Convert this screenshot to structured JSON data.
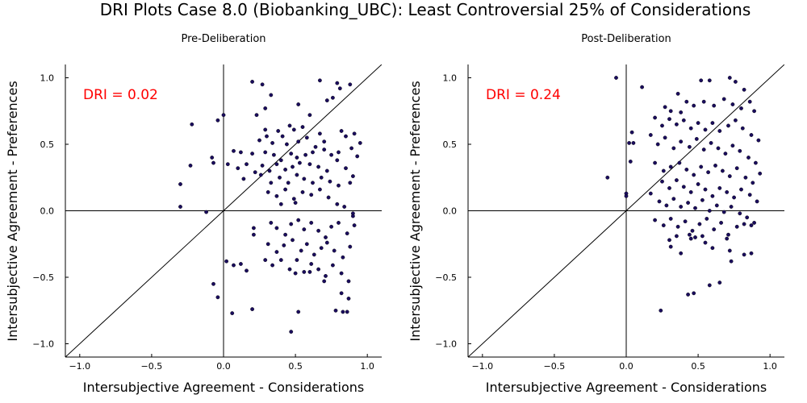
{
  "title": "DRI Plots Case 8.0 (Biobanking_UBC): Least Controversial 25% of Considerations",
  "colors": {
    "points": "#1a0c5e",
    "dri_text": "#ff0000",
    "axes": "#000000"
  },
  "chart_data": [
    {
      "type": "scatter",
      "title": "Pre-Deliberation",
      "xlabel": "Intersubjective Agreement - Considerations",
      "ylabel": "Intersubjective Agreement - Preferences",
      "xlim": [
        -1.1,
        1.1
      ],
      "ylim": [
        -1.1,
        1.1
      ],
      "xticks": [
        -1.0,
        -0.5,
        0.0,
        0.5,
        1.0
      ],
      "xtick_labels": [
        "−1.0",
        "−0.5",
        "0.0",
        "0.5",
        "1.0"
      ],
      "yticks": [
        -1.0,
        -0.5,
        0.0,
        0.5,
        1.0
      ],
      "ytick_labels": [
        "−1.0",
        "−0.5",
        "0.0",
        "0.5",
        "1.0"
      ],
      "annotation": "DRI = 0.02",
      "reference_lines": [
        "x=0",
        "y=0",
        "y=x"
      ],
      "grid": false,
      "points": [
        [
          0.2,
          0.97
        ],
        [
          0.27,
          0.95
        ],
        [
          0.67,
          0.98
        ],
        [
          0.79,
          0.96
        ],
        [
          0.88,
          0.95
        ],
        [
          0.81,
          0.92
        ],
        [
          0.76,
          0.85
        ],
        [
          0.72,
          0.83
        ],
        [
          0.52,
          0.8
        ],
        [
          0.33,
          0.87
        ],
        [
          0.29,
          0.77
        ],
        [
          0.23,
          0.72
        ],
        [
          0.0,
          0.72
        ],
        [
          -0.04,
          0.68
        ],
        [
          -0.22,
          0.65
        ],
        [
          0.6,
          0.72
        ],
        [
          0.55,
          0.63
        ],
        [
          0.49,
          0.61
        ],
        [
          0.46,
          0.64
        ],
        [
          0.38,
          0.6
        ],
        [
          0.29,
          0.61
        ],
        [
          0.3,
          0.56
        ],
        [
          0.25,
          0.53
        ],
        [
          0.34,
          0.51
        ],
        [
          0.41,
          0.56
        ],
        [
          0.44,
          0.5
        ],
        [
          0.52,
          0.52
        ],
        [
          0.58,
          0.55
        ],
        [
          0.64,
          0.48
        ],
        [
          0.7,
          0.52
        ],
        [
          0.67,
          0.58
        ],
        [
          0.82,
          0.6
        ],
        [
          0.85,
          0.56
        ],
        [
          0.91,
          0.58
        ],
        [
          0.95,
          0.51
        ],
        [
          0.89,
          0.47
        ],
        [
          0.93,
          0.41
        ],
        [
          0.8,
          0.44
        ],
        [
          0.75,
          0.42
        ],
        [
          0.7,
          0.46
        ],
        [
          0.62,
          0.44
        ],
        [
          0.57,
          0.42
        ],
        [
          0.51,
          0.4
        ],
        [
          0.47,
          0.43
        ],
        [
          0.4,
          0.38
        ],
        [
          0.35,
          0.42
        ],
        [
          0.29,
          0.44
        ],
        [
          0.2,
          0.43
        ],
        [
          0.12,
          0.44
        ],
        [
          0.07,
          0.45
        ],
        [
          0.03,
          0.35
        ],
        [
          -0.08,
          0.4
        ],
        [
          -0.07,
          0.36
        ],
        [
          -0.23,
          0.34
        ],
        [
          0.1,
          0.32
        ],
        [
          0.16,
          0.35
        ],
        [
          0.22,
          0.29
        ],
        [
          0.27,
          0.34
        ],
        [
          0.32,
          0.3
        ],
        [
          0.37,
          0.35
        ],
        [
          0.43,
          0.31
        ],
        [
          0.48,
          0.33
        ],
        [
          0.53,
          0.36
        ],
        [
          0.6,
          0.35
        ],
        [
          0.66,
          0.33
        ],
        [
          0.72,
          0.3
        ],
        [
          0.79,
          0.38
        ],
        [
          0.85,
          0.32
        ],
        [
          0.9,
          0.26
        ],
        [
          0.14,
          0.24
        ],
        [
          0.26,
          0.27
        ],
        [
          0.33,
          0.21
        ],
        [
          0.39,
          0.25
        ],
        [
          0.45,
          0.21
        ],
        [
          0.51,
          0.27
        ],
        [
          0.56,
          0.24
        ],
        [
          0.62,
          0.21
        ],
        [
          0.68,
          0.25
        ],
        [
          0.74,
          0.22
        ],
        [
          0.8,
          0.19
        ],
        [
          0.88,
          0.21
        ],
        [
          0.31,
          0.14
        ],
        [
          0.37,
          0.11
        ],
        [
          0.43,
          0.16
        ],
        [
          0.49,
          0.09
        ],
        [
          0.55,
          0.14
        ],
        [
          0.61,
          0.12
        ],
        [
          0.67,
          0.16
        ],
        [
          0.73,
          0.1
        ],
        [
          0.79,
          0.05
        ],
        [
          0.84,
          0.03
        ],
        [
          0.9,
          -0.02
        ],
        [
          0.9,
          -0.04
        ],
        [
          0.5,
          0.06
        ],
        [
          0.4,
          0.05
        ],
        [
          -0.3,
          0.2
        ],
        [
          -0.3,
          0.03
        ],
        [
          -0.12,
          -0.01
        ],
        [
          0.21,
          -0.13
        ],
        [
          0.21,
          -0.18
        ],
        [
          0.33,
          -0.09
        ],
        [
          0.37,
          -0.13
        ],
        [
          0.43,
          -0.18
        ],
        [
          0.47,
          -0.1
        ],
        [
          0.52,
          -0.07
        ],
        [
          0.56,
          -0.14
        ],
        [
          0.61,
          -0.09
        ],
        [
          0.66,
          -0.15
        ],
        [
          0.71,
          -0.2
        ],
        [
          0.75,
          -0.12
        ],
        [
          0.8,
          -0.09
        ],
        [
          0.86,
          -0.17
        ],
        [
          0.91,
          -0.11
        ],
        [
          0.31,
          -0.25
        ],
        [
          0.37,
          -0.31
        ],
        [
          0.42,
          -0.26
        ],
        [
          0.48,
          -0.22
        ],
        [
          0.54,
          -0.3
        ],
        [
          0.58,
          -0.25
        ],
        [
          0.63,
          -0.33
        ],
        [
          0.68,
          -0.28
        ],
        [
          0.72,
          -0.24
        ],
        [
          0.77,
          -0.3
        ],
        [
          0.83,
          -0.35
        ],
        [
          0.88,
          -0.27
        ],
        [
          0.29,
          -0.37
        ],
        [
          0.34,
          -0.41
        ],
        [
          0.4,
          -0.37
        ],
        [
          0.46,
          -0.44
        ],
        [
          0.51,
          -0.37
        ],
        [
          0.56,
          -0.46
        ],
        [
          0.61,
          -0.4
        ],
        [
          0.66,
          -0.44
        ],
        [
          0.71,
          -0.49
        ],
        [
          0.76,
          -0.41
        ],
        [
          0.82,
          -0.47
        ],
        [
          0.87,
          -0.53
        ],
        [
          0.02,
          -0.38
        ],
        [
          0.07,
          -0.41
        ],
        [
          0.12,
          -0.4
        ],
        [
          0.16,
          -0.45
        ],
        [
          0.5,
          -0.47
        ],
        [
          0.6,
          -0.46
        ],
        [
          0.7,
          -0.53
        ],
        [
          0.82,
          -0.62
        ],
        [
          0.87,
          -0.66
        ],
        [
          0.78,
          -0.75
        ],
        [
          0.83,
          -0.76
        ],
        [
          0.86,
          -0.76
        ],
        [
          0.52,
          -0.76
        ],
        [
          0.47,
          -0.91
        ],
        [
          0.2,
          -0.74
        ],
        [
          0.06,
          -0.77
        ],
        [
          -0.07,
          -0.55
        ],
        [
          -0.04,
          -0.65
        ]
      ]
    },
    {
      "type": "scatter",
      "title": "Post-Deliberation",
      "xlabel": "Intersubjective Agreement - Considerations",
      "ylabel": "Intersubjective Agreement - Preferences",
      "xlim": [
        -1.1,
        1.1
      ],
      "ylim": [
        -1.1,
        1.1
      ],
      "xticks": [
        -1.0,
        -0.5,
        0.0,
        0.5,
        1.0
      ],
      "xtick_labels": [
        "−1.0",
        "−0.5",
        "0.0",
        "0.5",
        "1.0"
      ],
      "yticks": [
        -1.0,
        -0.5,
        0.0,
        0.5,
        1.0
      ],
      "ytick_labels": [
        "−1.0",
        "−0.5",
        "0.0",
        "0.5",
        "1.0"
      ],
      "annotation": "DRI = 0.24",
      "reference_lines": [
        "x=0",
        "y=0",
        "y=x"
      ],
      "grid": false,
      "points": [
        [
          -0.07,
          1.0
        ],
        [
          0.52,
          0.98
        ],
        [
          0.58,
          0.98
        ],
        [
          0.72,
          1.0
        ],
        [
          0.11,
          0.93
        ],
        [
          0.76,
          0.97
        ],
        [
          0.82,
          0.91
        ],
        [
          0.36,
          0.88
        ],
        [
          0.42,
          0.82
        ],
        [
          0.27,
          0.78
        ],
        [
          0.31,
          0.75
        ],
        [
          0.38,
          0.74
        ],
        [
          0.47,
          0.79
        ],
        [
          0.54,
          0.82
        ],
        [
          0.61,
          0.79
        ],
        [
          0.68,
          0.84
        ],
        [
          0.74,
          0.8
        ],
        [
          0.8,
          0.77
        ],
        [
          0.86,
          0.82
        ],
        [
          0.89,
          0.75
        ],
        [
          0.2,
          0.7
        ],
        [
          0.25,
          0.64
        ],
        [
          0.3,
          0.69
        ],
        [
          0.35,
          0.65
        ],
        [
          0.4,
          0.68
        ],
        [
          0.45,
          0.62
        ],
        [
          0.5,
          0.66
        ],
        [
          0.55,
          0.61
        ],
        [
          0.6,
          0.66
        ],
        [
          0.65,
          0.6
        ],
        [
          0.71,
          0.64
        ],
        [
          0.76,
          0.68
        ],
        [
          0.81,
          0.62
        ],
        [
          0.87,
          0.57
        ],
        [
          0.92,
          0.53
        ],
        [
          0.17,
          0.57
        ],
        [
          0.22,
          0.5
        ],
        [
          0.27,
          0.55
        ],
        [
          0.33,
          0.47
        ],
        [
          0.38,
          0.52
        ],
        [
          0.44,
          0.48
        ],
        [
          0.49,
          0.54
        ],
        [
          0.54,
          0.46
        ],
        [
          0.59,
          0.51
        ],
        [
          0.64,
          0.47
        ],
        [
          0.69,
          0.43
        ],
        [
          0.74,
          0.49
        ],
        [
          0.79,
          0.45
        ],
        [
          0.85,
          0.4
        ],
        [
          0.9,
          0.36
        ],
        [
          0.04,
          0.59
        ],
        [
          0.02,
          0.51
        ],
        [
          0.05,
          0.51
        ],
        [
          0.03,
          0.37
        ],
        [
          0.2,
          0.36
        ],
        [
          0.26,
          0.3
        ],
        [
          0.31,
          0.33
        ],
        [
          0.37,
          0.36
        ],
        [
          0.42,
          0.31
        ],
        [
          0.47,
          0.27
        ],
        [
          0.52,
          0.33
        ],
        [
          0.57,
          0.29
        ],
        [
          0.62,
          0.34
        ],
        [
          0.67,
          0.3
        ],
        [
          0.72,
          0.26
        ],
        [
          0.77,
          0.32
        ],
        [
          0.83,
          0.25
        ],
        [
          0.88,
          0.21
        ],
        [
          0.93,
          0.28
        ],
        [
          0.25,
          0.22
        ],
        [
          0.3,
          0.17
        ],
        [
          0.35,
          0.23
        ],
        [
          0.4,
          0.18
        ],
        [
          0.45,
          0.14
        ],
        [
          0.5,
          0.2
        ],
        [
          0.55,
          0.16
        ],
        [
          0.6,
          0.11
        ],
        [
          0.65,
          0.17
        ],
        [
          0.7,
          0.14
        ],
        [
          0.75,
          0.1
        ],
        [
          0.8,
          0.16
        ],
        [
          0.86,
          0.12
        ],
        [
          0.91,
          0.07
        ],
        [
          0.17,
          0.13
        ],
        [
          0.23,
          0.07
        ],
        [
          0.28,
          0.04
        ],
        [
          0.33,
          0.09
        ],
        [
          0.38,
          0.03
        ],
        [
          0.43,
          0.06
        ],
        [
          0.48,
          0.02
        ],
        [
          0.53,
          0.08
        ],
        [
          0.58,
          0.0
        ],
        [
          0.63,
          0.04
        ],
        [
          0.68,
          -0.01
        ],
        [
          0.73,
          0.03
        ],
        [
          0.79,
          -0.02
        ],
        [
          0.84,
          -0.05
        ],
        [
          0.89,
          -0.09
        ],
        [
          0.0,
          0.13
        ],
        [
          0.0,
          0.11
        ],
        [
          -0.13,
          0.25
        ],
        [
          0.2,
          -0.07
        ],
        [
          0.26,
          -0.11
        ],
        [
          0.31,
          -0.06
        ],
        [
          0.36,
          -0.12
        ],
        [
          0.41,
          -0.08
        ],
        [
          0.46,
          -0.15
        ],
        [
          0.51,
          -0.1
        ],
        [
          0.56,
          -0.06
        ],
        [
          0.61,
          -0.14
        ],
        [
          0.66,
          -0.09
        ],
        [
          0.71,
          -0.18
        ],
        [
          0.77,
          -0.12
        ],
        [
          0.82,
          -0.1
        ],
        [
          0.87,
          -0.11
        ],
        [
          0.3,
          -0.22
        ],
        [
          0.35,
          -0.19
        ],
        [
          0.45,
          -0.21
        ],
        [
          0.55,
          -0.24
        ],
        [
          0.6,
          -0.28
        ],
        [
          0.7,
          -0.21
        ],
        [
          0.31,
          -0.27
        ],
        [
          0.38,
          -0.32
        ],
        [
          0.44,
          -0.18
        ],
        [
          0.48,
          -0.2
        ],
        [
          0.53,
          -0.19
        ],
        [
          0.72,
          -0.3
        ],
        [
          0.73,
          -0.38
        ],
        [
          0.82,
          -0.33
        ],
        [
          0.87,
          -0.32
        ],
        [
          0.58,
          -0.56
        ],
        [
          0.65,
          -0.54
        ],
        [
          0.43,
          -0.63
        ],
        [
          0.47,
          -0.62
        ],
        [
          0.24,
          -0.75
        ]
      ]
    }
  ]
}
